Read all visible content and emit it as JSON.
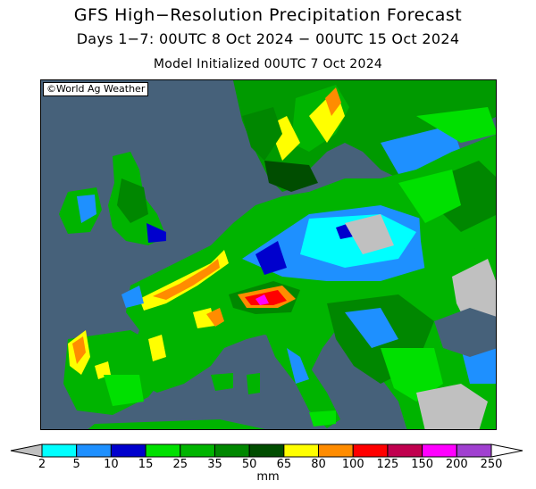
{
  "header": {
    "title": "GFS High−Resolution Precipitation Forecast",
    "subtitle": "Days 1−7: 00UTC 8 Oct 2024 − 00UTC 15 Oct 2024",
    "init": "Model Initialized 00UTC 7 Oct 2024"
  },
  "map": {
    "credit": "©World Ag Weather",
    "region": "Europe",
    "sea_color": "#46617a",
    "no_precip_color": "#c0c0c0"
  },
  "legend": {
    "units": "mm",
    "ticks": [
      "2",
      "5",
      "10",
      "15",
      "25",
      "35",
      "50",
      "65",
      "80",
      "100",
      "125",
      "150",
      "200",
      "250"
    ],
    "colors": [
      "#00ffff",
      "#1e90ff",
      "#0000cd",
      "#00e000",
      "#00b400",
      "#008700",
      "#004d00",
      "#ffff00",
      "#ff8c00",
      "#ff0000",
      "#c0004e",
      "#ff00ff",
      "#a040d0"
    ],
    "below_color": "#c0c0c0",
    "above_color": "#ffffff"
  }
}
